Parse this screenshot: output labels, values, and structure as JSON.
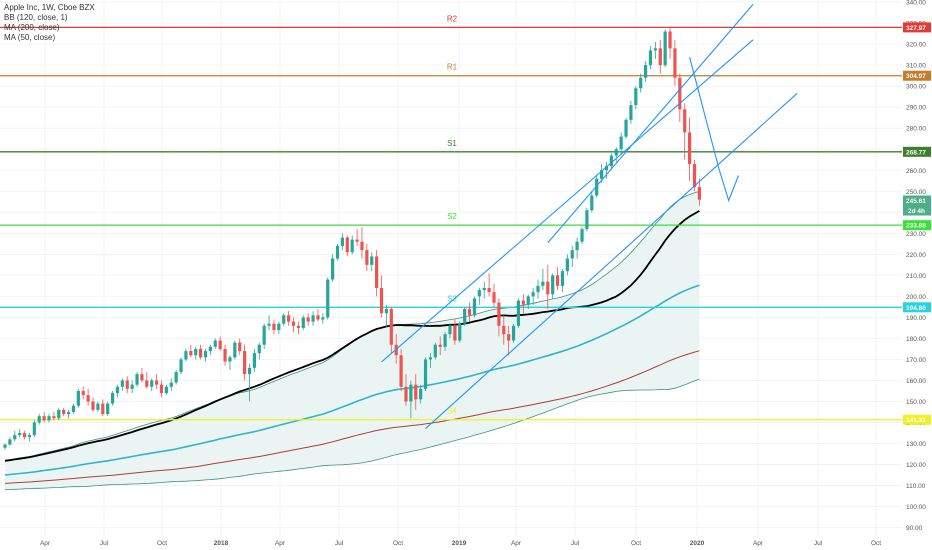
{
  "legend": {
    "symbol": "Apple Inc, 1W, Cboe BZX",
    "bb": "BB (120, close, 1)",
    "ma200": "MA (200, close)",
    "ma50": "MA (50, close)"
  },
  "colors": {
    "up": "#26a69a",
    "down": "#ef5350",
    "r2": "#e53935",
    "r1": "#c77c2c",
    "s1": "#3d7f2f",
    "s2": "#36e336",
    "s3": "#26d3e0",
    "s4": "#f2ef22",
    "channel": "#2196f3",
    "ma50": "#000000",
    "ma200": "#ab3c3c",
    "bb_mid": "#2fb4c9",
    "bb_band": "#3f8f7f",
    "bb_fill": "#eaf5f3"
  },
  "chart_data": {
    "type": "candlestick",
    "title": "Apple Inc, 1W, Cboe BZX",
    "x_ticks": [
      "Apr",
      "Jul",
      "Oct",
      "2018",
      "Apr",
      "Jul",
      "Oct",
      "2019",
      "Apr",
      "Jul",
      "Oct",
      "2020",
      "Apr",
      "Jul",
      "Oct"
    ],
    "y_ticks": [
      90,
      100,
      110,
      120,
      130,
      140,
      150,
      160,
      170,
      180,
      190,
      200,
      210,
      220,
      230,
      240,
      250,
      260,
      270,
      280,
      290,
      300,
      310,
      320,
      330,
      340
    ],
    "ylim": [
      86,
      341
    ],
    "levels": [
      {
        "name": "R2",
        "value": 327.97,
        "label": "327.97",
        "color": "#e53935"
      },
      {
        "name": "R1",
        "value": 304.97,
        "label": "304.97",
        "color": "#c77c2c"
      },
      {
        "name": "S1",
        "value": 268.77,
        "label": "268.77",
        "color": "#3d7f2f"
      },
      {
        "name": "S2",
        "value": 233.88,
        "label": "233.88",
        "color": "#36e336"
      },
      {
        "name": "S3",
        "value": 194.8,
        "label": "194.80",
        "color": "#26d3e0"
      },
      {
        "name": "S4",
        "value": 141.31,
        "label": "141.31",
        "color": "#f2ef22"
      }
    ],
    "last_price": {
      "label": "245.61",
      "value": 245.61
    },
    "countdown": "2d 4h",
    "candles": [
      [
        128,
        130,
        127,
        129.5
      ],
      [
        129.5,
        133,
        129,
        132
      ],
      [
        132,
        136,
        131,
        134
      ],
      [
        134,
        137,
        133,
        135
      ],
      [
        135,
        136,
        132,
        133
      ],
      [
        133,
        135,
        131,
        134
      ],
      [
        134,
        141,
        133,
        140
      ],
      [
        140,
        144,
        139,
        143
      ],
      [
        143,
        145,
        140,
        141
      ],
      [
        141,
        144,
        140,
        143
      ],
      [
        143,
        145,
        141,
        142
      ],
      [
        142,
        147,
        141,
        146
      ],
      [
        146,
        147,
        143,
        144
      ],
      [
        144,
        146,
        142,
        145
      ],
      [
        145,
        149,
        144,
        148
      ],
      [
        148,
        156,
        147,
        155
      ],
      [
        155,
        157,
        151,
        153
      ],
      [
        153,
        156,
        148,
        150
      ],
      [
        150,
        152,
        145,
        146
      ],
      [
        146,
        150,
        145,
        149
      ],
      [
        149,
        151,
        143,
        144
      ],
      [
        144,
        150,
        143,
        149
      ],
      [
        149,
        155,
        148,
        154
      ],
      [
        154,
        158,
        152,
        157
      ],
      [
        157,
        161,
        155,
        160
      ],
      [
        160,
        162,
        154,
        156
      ],
      [
        156,
        160,
        154,
        158
      ],
      [
        158,
        164,
        157,
        163
      ],
      [
        163,
        166,
        159,
        160
      ],
      [
        160,
        164,
        156,
        157
      ],
      [
        157,
        161,
        155,
        160
      ],
      [
        160,
        163,
        156,
        158
      ],
      [
        158,
        160,
        152,
        154
      ],
      [
        154,
        158,
        153,
        157
      ],
      [
        157,
        161,
        155,
        159
      ],
      [
        159,
        165,
        158,
        164
      ],
      [
        164,
        171,
        163,
        170
      ],
      [
        170,
        175,
        169,
        174
      ],
      [
        174,
        177,
        171,
        172
      ],
      [
        172,
        176,
        170,
        175
      ],
      [
        175,
        177,
        170,
        171
      ],
      [
        171,
        175,
        169,
        174
      ],
      [
        174,
        177,
        172,
        176
      ],
      [
        176,
        180,
        175,
        179
      ],
      [
        179,
        181,
        174,
        175
      ],
      [
        175,
        177,
        167,
        169
      ],
      [
        169,
        172,
        165,
        171
      ],
      [
        171,
        179,
        170,
        178
      ],
      [
        178,
        180,
        172,
        174
      ],
      [
        174,
        177,
        160,
        163
      ],
      [
        163,
        168,
        150,
        166
      ],
      [
        166,
        175,
        164,
        173
      ],
      [
        173,
        178,
        170,
        177
      ],
      [
        177,
        187,
        175,
        186
      ],
      [
        186,
        191,
        184,
        187
      ],
      [
        187,
        189,
        182,
        184
      ],
      [
        184,
        188,
        182,
        187
      ],
      [
        187,
        192,
        186,
        191
      ],
      [
        191,
        193,
        186,
        188
      ],
      [
        188,
        190,
        183,
        186
      ],
      [
        186,
        188,
        182,
        185
      ],
      [
        185,
        191,
        184,
        190
      ],
      [
        190,
        192,
        186,
        188
      ],
      [
        188,
        193,
        186,
        191
      ],
      [
        191,
        194,
        188,
        189
      ],
      [
        189,
        192,
        187,
        190
      ],
      [
        190,
        209,
        189,
        208
      ],
      [
        208,
        220,
        207,
        218
      ],
      [
        218,
        225,
        217,
        224
      ],
      [
        224,
        230,
        222,
        228
      ],
      [
        228,
        229,
        219,
        221
      ],
      [
        221,
        229,
        220,
        227
      ],
      [
        227,
        232,
        224,
        226
      ],
      [
        226,
        233,
        218,
        222
      ],
      [
        222,
        225,
        212,
        215
      ],
      [
        215,
        221,
        212,
        219
      ],
      [
        219,
        222,
        200,
        204
      ],
      [
        204,
        210,
        190,
        192
      ],
      [
        192,
        196,
        185,
        194
      ],
      [
        194,
        195,
        173,
        177
      ],
      [
        177,
        182,
        168,
        172
      ],
      [
        172,
        175,
        155,
        157
      ],
      [
        157,
        163,
        148,
        150
      ],
      [
        150,
        160,
        142,
        158
      ],
      [
        158,
        163,
        146,
        151
      ],
      [
        151,
        158,
        149,
        156
      ],
      [
        156,
        171,
        155,
        170
      ],
      [
        170,
        173,
        166,
        171
      ],
      [
        171,
        178,
        170,
        177
      ],
      [
        177,
        181,
        172,
        176
      ],
      [
        176,
        183,
        174,
        182
      ],
      [
        182,
        187,
        180,
        186
      ],
      [
        186,
        189,
        177,
        179
      ],
      [
        179,
        188,
        178,
        187
      ],
      [
        187,
        195,
        186,
        194
      ],
      [
        194,
        197,
        188,
        191
      ],
      [
        191,
        200,
        190,
        199
      ],
      [
        200,
        204,
        196,
        203
      ],
      [
        203,
        207,
        199,
        204
      ],
      [
        204,
        211,
        200,
        202
      ],
      [
        202,
        206,
        195,
        197
      ],
      [
        197,
        199,
        181,
        186
      ],
      [
        186,
        191,
        177,
        182
      ],
      [
        182,
        186,
        172,
        179
      ],
      [
        179,
        187,
        178,
        186
      ],
      [
        186,
        199,
        185,
        198
      ],
      [
        198,
        201,
        192,
        196
      ],
      [
        196,
        201,
        194,
        200
      ],
      [
        200,
        204,
        196,
        202
      ],
      [
        202,
        208,
        199,
        205
      ],
      [
        205,
        213,
        203,
        207
      ],
      [
        207,
        215,
        194,
        201
      ],
      [
        201,
        211,
        199,
        210
      ],
      [
        210,
        214,
        203,
        205
      ],
      [
        205,
        213,
        202,
        212
      ],
      [
        212,
        220,
        210,
        218
      ],
      [
        218,
        224,
        214,
        222
      ],
      [
        222,
        228,
        218,
        226
      ],
      [
        226,
        233,
        225,
        232
      ],
      [
        232,
        242,
        231,
        241
      ],
      [
        241,
        250,
        240,
        248
      ],
      [
        248,
        258,
        247,
        256
      ],
      [
        256,
        263,
        254,
        260
      ],
      [
        260,
        264,
        256,
        262
      ],
      [
        262,
        268,
        260,
        267
      ],
      [
        267,
        271,
        264,
        270
      ],
      [
        270,
        278,
        268,
        276
      ],
      [
        276,
        285,
        275,
        284
      ],
      [
        284,
        293,
        282,
        291
      ],
      [
        291,
        300,
        289,
        299
      ],
      [
        299,
        306,
        297,
        304
      ],
      [
        304,
        312,
        302,
        310
      ],
      [
        310,
        319,
        308,
        317
      ],
      [
        317,
        321,
        313,
        318
      ],
      [
        318,
        322,
        306,
        310
      ],
      [
        310,
        327,
        309,
        326
      ],
      [
        326,
        328,
        313,
        318
      ],
      [
        318,
        322,
        300,
        304
      ],
      [
        304,
        306,
        283,
        289
      ],
      [
        289,
        292,
        265,
        278
      ],
      [
        278,
        285,
        255,
        263
      ],
      [
        263,
        265,
        250,
        252
      ],
      [
        252,
        256,
        243,
        246
      ]
    ],
    "channel_lines": [
      {
        "x1": 111,
        "y1": 225.5,
        "x2": 153,
        "y2": 339.0
      },
      {
        "x1": 77,
        "y1": 168.8,
        "x2": 153,
        "y2": 322.1
      },
      {
        "x1": 86,
        "y1": 137.1,
        "x2": 162,
        "y2": 296.6
      }
    ],
    "swing_line": [
      [
        140,
        313.8
      ],
      [
        146,
        260.8
      ],
      [
        148,
        245.6
      ],
      [
        150,
        257.5
      ]
    ]
  }
}
